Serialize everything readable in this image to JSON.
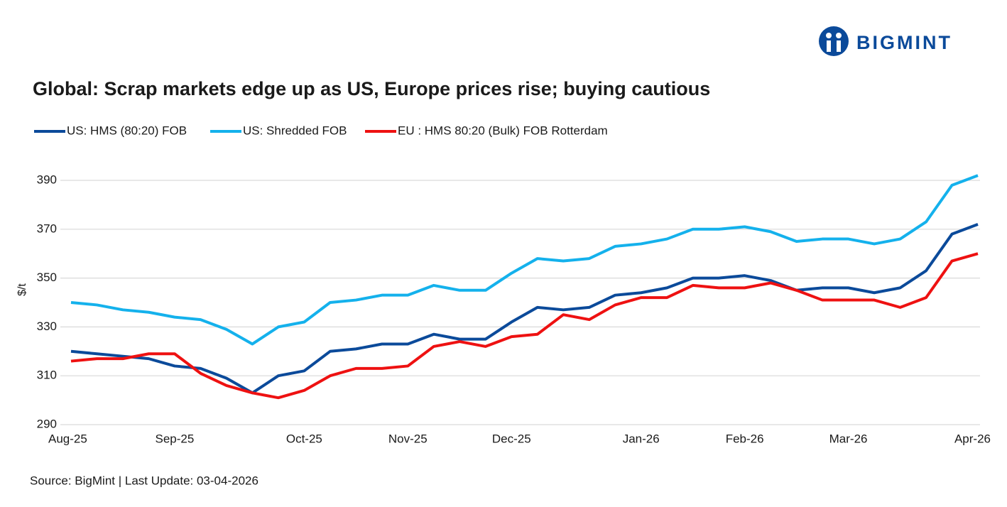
{
  "logo": "BIGMINT",
  "chart_data": {
    "type": "line",
    "title": "Global: Scrap markets edge up as US, Europe prices rise; buying cautious",
    "y_label": "$/t",
    "source": "Source: BigMint | Last Update: 03-04-2026",
    "categories": [
      "Aug-25",
      null,
      null,
      null,
      "Sep-25",
      null,
      null,
      null,
      null,
      "Oct-25",
      null,
      null,
      null,
      "Nov-25",
      null,
      null,
      null,
      "Dec-25",
      null,
      null,
      null,
      null,
      "Jan-26",
      null,
      null,
      null,
      "Feb-26",
      null,
      null,
      null,
      "Mar-26",
      null,
      null,
      null,
      null,
      "Apr-26"
    ],
    "series": [
      {
        "name": "US: HMS (80:20) FOB",
        "color": "#0b4a9a",
        "values": [
          320,
          319,
          318,
          317,
          314,
          313,
          309,
          303,
          310,
          312,
          320,
          321,
          323,
          323,
          327,
          325,
          325,
          332,
          338,
          337,
          338,
          343,
          344,
          346,
          350,
          350,
          351,
          349,
          345,
          346,
          346,
          344,
          346,
          353,
          368,
          372
        ]
      },
      {
        "name": "US: Shredded FOB",
        "color": "#14b1ec",
        "values": [
          340,
          339,
          337,
          336,
          334,
          333,
          329,
          323,
          330,
          332,
          340,
          341,
          343,
          343,
          347,
          345,
          345,
          352,
          358,
          357,
          358,
          363,
          364,
          366,
          370,
          370,
          371,
          369,
          365,
          366,
          366,
          364,
          366,
          373,
          388,
          392
        ]
      },
      {
        "name": "EU : HMS 80:20 (Bulk) FOB Rotterdam",
        "color": "#ee1111",
        "values": [
          316,
          317,
          317,
          319,
          319,
          311,
          306,
          303,
          301,
          304,
          310,
          313,
          313,
          314,
          322,
          324,
          322,
          326,
          327,
          335,
          333,
          339,
          342,
          342,
          347,
          346,
          346,
          348,
          345,
          341,
          341,
          341,
          338,
          342,
          357,
          360
        ]
      }
    ],
    "ylim": [
      290,
      410
    ],
    "yticks": [
      290,
      310,
      330,
      350,
      370,
      390
    ],
    "grid": true
  }
}
